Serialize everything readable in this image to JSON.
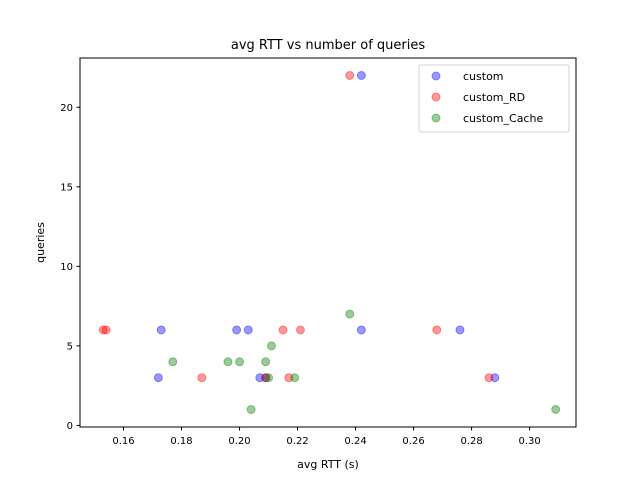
{
  "chart_data": {
    "type": "scatter",
    "title": "avg RTT vs number of queries",
    "xlabel": "avg RTT (s)",
    "ylabel": "queries",
    "xlim": [
      0.145,
      0.316
    ],
    "ylim": [
      -0.1,
      23.1
    ],
    "xticks": [
      {
        "value": 0.16,
        "label": "0.16"
      },
      {
        "value": 0.18,
        "label": "0.18"
      },
      {
        "value": 0.2,
        "label": "0.20"
      },
      {
        "value": 0.22,
        "label": "0.22"
      },
      {
        "value": 0.24,
        "label": "0.24"
      },
      {
        "value": 0.26,
        "label": "0.26"
      },
      {
        "value": 0.28,
        "label": "0.28"
      },
      {
        "value": 0.3,
        "label": "0.30"
      }
    ],
    "yticks": [
      {
        "value": 0,
        "label": "0"
      },
      {
        "value": 5,
        "label": "5"
      },
      {
        "value": 10,
        "label": "10"
      },
      {
        "value": 15,
        "label": "15"
      },
      {
        "value": 20,
        "label": "20"
      }
    ],
    "grid": false,
    "legend_position": "top-right",
    "series": [
      {
        "name": "custom",
        "color": "#0000ff",
        "points": [
          {
            "x": 0.242,
            "y": 22
          },
          {
            "x": 0.173,
            "y": 6
          },
          {
            "x": 0.199,
            "y": 6
          },
          {
            "x": 0.203,
            "y": 6
          },
          {
            "x": 0.242,
            "y": 6
          },
          {
            "x": 0.276,
            "y": 6
          },
          {
            "x": 0.172,
            "y": 3
          },
          {
            "x": 0.207,
            "y": 3
          },
          {
            "x": 0.209,
            "y": 3
          },
          {
            "x": 0.288,
            "y": 3
          }
        ]
      },
      {
        "name": "custom_RD",
        "color": "#ff0000",
        "points": [
          {
            "x": 0.238,
            "y": 22
          },
          {
            "x": 0.153,
            "y": 6
          },
          {
            "x": 0.154,
            "y": 6
          },
          {
            "x": 0.215,
            "y": 6
          },
          {
            "x": 0.221,
            "y": 6
          },
          {
            "x": 0.268,
            "y": 6
          },
          {
            "x": 0.187,
            "y": 3
          },
          {
            "x": 0.209,
            "y": 3
          },
          {
            "x": 0.217,
            "y": 3
          },
          {
            "x": 0.286,
            "y": 3
          }
        ]
      },
      {
        "name": "custom_Cache",
        "color": "#008000",
        "points": [
          {
            "x": 0.238,
            "y": 7
          },
          {
            "x": 0.211,
            "y": 5
          },
          {
            "x": 0.177,
            "y": 4
          },
          {
            "x": 0.196,
            "y": 4
          },
          {
            "x": 0.2,
            "y": 4
          },
          {
            "x": 0.209,
            "y": 4
          },
          {
            "x": 0.21,
            "y": 3
          },
          {
            "x": 0.219,
            "y": 3
          },
          {
            "x": 0.204,
            "y": 1
          },
          {
            "x": 0.309,
            "y": 1
          }
        ]
      }
    ]
  }
}
